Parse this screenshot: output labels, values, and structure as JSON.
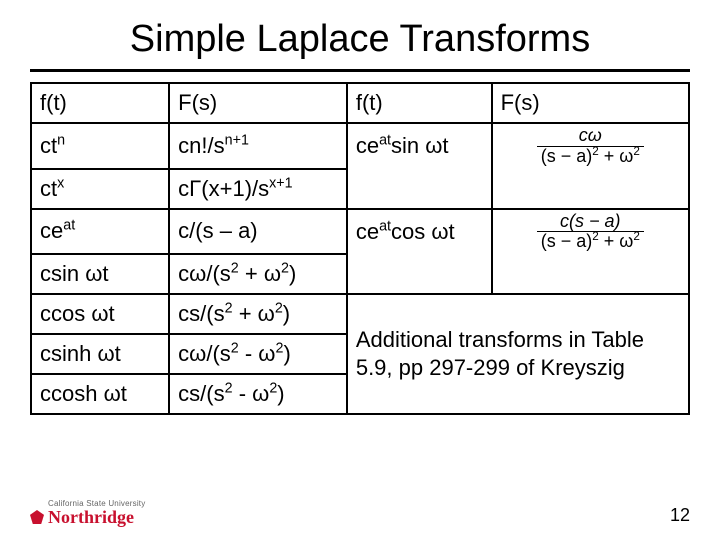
{
  "title": "Simple Laplace Transforms",
  "headers": {
    "ft": "f(t)",
    "Fs": "F(s)"
  },
  "rows": {
    "r1": {
      "a": "ct",
      "a_sup": "n",
      "b_pre": "cn!/s",
      "b_sup": "n+1",
      "c_pre": "ce",
      "c_sup": "at",
      "c_post": "sin ωt"
    },
    "r2": {
      "a": "ct",
      "a_sup": "x",
      "b_pre": "cΓ(x+1)/s",
      "b_sup": "x+1"
    },
    "r3": {
      "a_pre": "ce",
      "a_sup": "at",
      "b": "c/(s – a)",
      "c_pre": "ce",
      "c_sup": "at",
      "c_post": "cos ωt"
    },
    "r4": {
      "a": "csin ωt",
      "b_pre": "cω/(s",
      "b_sup": "2",
      "b_mid": " + ω",
      "b_sup2": "2",
      "b_post": ")"
    },
    "r5": {
      "a": "ccos ωt",
      "b_pre": "cs/(s",
      "b_sup": "2",
      "b_mid": " + ω",
      "b_sup2": "2",
      "b_post": ")"
    },
    "r6": {
      "a": "csinh ωt",
      "b_pre": "cω/(s",
      "b_sup": "2",
      "b_mid": " - ω",
      "b_sup2": "2",
      "b_post": ")"
    },
    "r7": {
      "a": "ccosh ωt",
      "b_pre": "cs/(s",
      "b_sup": "2",
      "b_mid": " - ω",
      "b_sup2": "2",
      "b_post": ")"
    }
  },
  "formula1": {
    "num": "cω",
    "den_pre": "(s − a)",
    "den_sup": "2",
    "den_mid": " + ω",
    "den_sup2": "2"
  },
  "formula2": {
    "num": "c(s − a)",
    "den_pre": "(s − a)",
    "den_sup": "2",
    "den_mid": " + ω",
    "den_sup2": "2"
  },
  "note": "Additional transforms in Table 5.9, pp 297-299 of Kreyszig",
  "logo": {
    "small": "California State University",
    "main": "Northridge"
  },
  "page": "12",
  "colors": {
    "text": "#000000",
    "accent": "#c8102e",
    "bg": "#ffffff",
    "gray": "#666666"
  }
}
